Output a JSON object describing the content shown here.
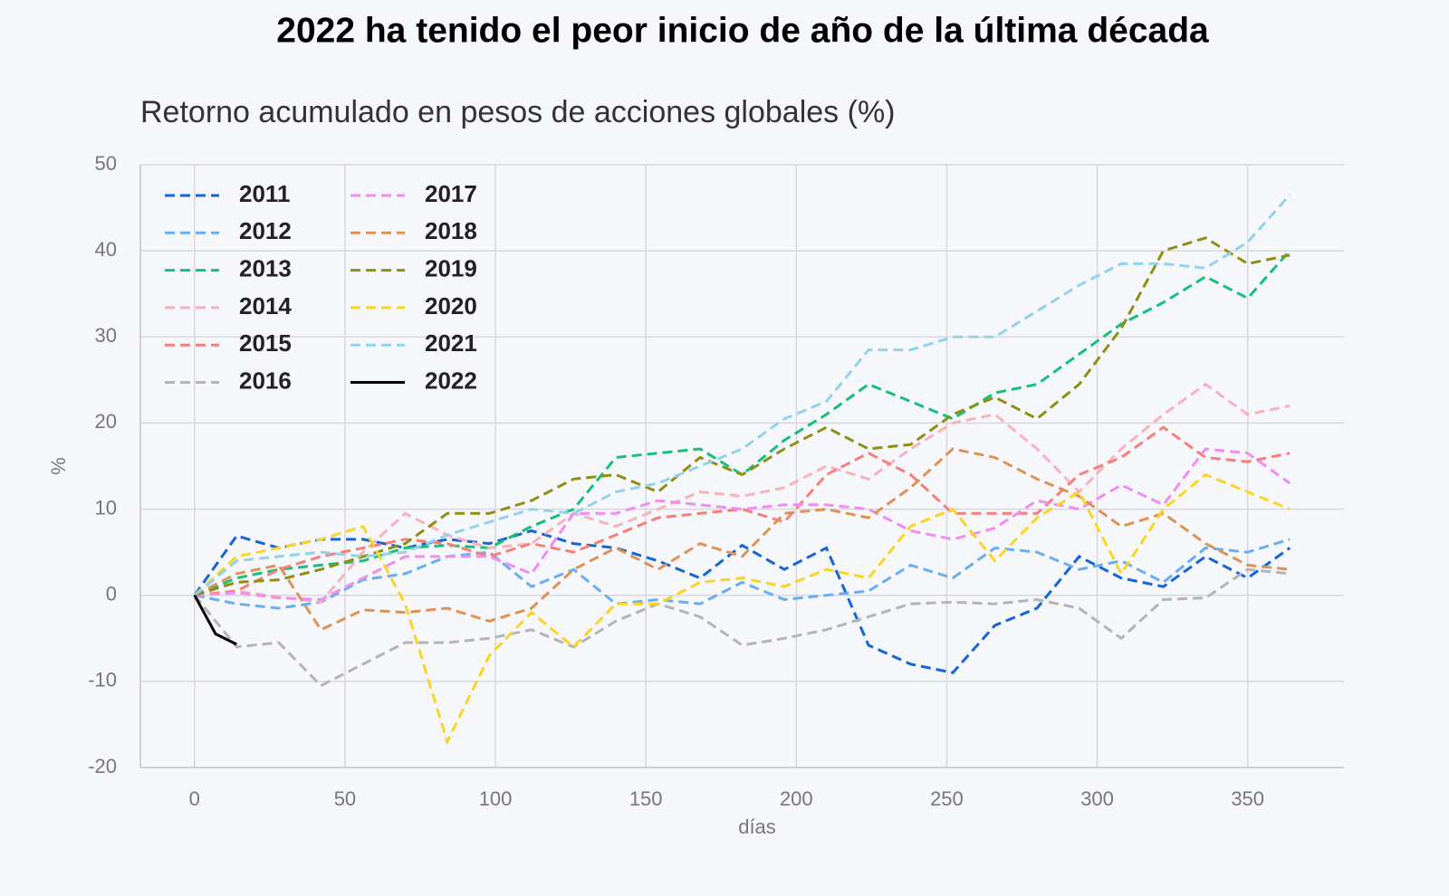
{
  "chart_data": {
    "type": "line",
    "title": "2022 ha tenido el peor inicio de año de la última década",
    "subtitle": "Retorno acumulado en pesos de acciones globales (%)",
    "x_label": "días",
    "y_label": "%",
    "xlim": [
      -18,
      382
    ],
    "ylim": [
      -20,
      50
    ],
    "xticks": [
      0,
      50,
      100,
      150,
      200,
      250,
      300,
      350
    ],
    "yticks": [
      -20,
      -10,
      0,
      10,
      20,
      30,
      40,
      50
    ],
    "grid": true,
    "legend": "upper left",
    "x": [
      0,
      14,
      28,
      42,
      56,
      70,
      84,
      98,
      112,
      126,
      140,
      154,
      168,
      182,
      196,
      210,
      224,
      238,
      252,
      266,
      280,
      294,
      308,
      322,
      336,
      350,
      364
    ],
    "series": [
      {
        "name": "2011",
        "color": "#1565d8",
        "linestyle": "dashed",
        "values": [
          0,
          6.9,
          5.5,
          6.5,
          6.5,
          5.5,
          6.5,
          6,
          7.5,
          6,
          5.5,
          4,
          2,
          5.8,
          3,
          5.5,
          -5.8,
          -8,
          -9,
          -3.5,
          -1.5,
          4.5,
          2,
          1,
          4.5,
          2,
          5.5
        ]
      },
      {
        "name": "2012",
        "color": "#6aaef0",
        "linestyle": "dashed",
        "values": [
          0,
          -1,
          -1.5,
          -0.8,
          1.8,
          2.5,
          4.5,
          5,
          1,
          3,
          -1,
          -0.5,
          -1,
          1.5,
          -0.5,
          0,
          0.5,
          3.5,
          2,
          5.5,
          5,
          3,
          4,
          1.5,
          5.5,
          5,
          6.5
        ]
      },
      {
        "name": "2013",
        "color": "#17c07a",
        "linestyle": "dashed",
        "values": [
          0,
          2,
          3,
          3.5,
          4,
          5.5,
          5.8,
          5.5,
          8,
          10,
          16,
          16.5,
          17,
          14,
          18,
          21,
          24.5,
          22.5,
          20.5,
          23.5,
          24.5,
          28,
          31.5,
          34,
          37,
          34.5,
          40
        ]
      },
      {
        "name": "2014",
        "color": "#f7b3bd",
        "linestyle": "dashed",
        "values": [
          0,
          0.5,
          -0.2,
          -0.8,
          5,
          9.5,
          7,
          5.5,
          6,
          9.5,
          8,
          10,
          12,
          11.5,
          12.5,
          15,
          13.5,
          17,
          20,
          21,
          17,
          12,
          17,
          21,
          24.5,
          21,
          22
        ]
      },
      {
        "name": "2015",
        "color": "#f57f7a",
        "linestyle": "dashed",
        "values": [
          0,
          0.5,
          3,
          4.5,
          5.5,
          6.5,
          6,
          4.5,
          6,
          5,
          7,
          9,
          9.5,
          10,
          8.5,
          14,
          16.5,
          14,
          9.5,
          9.5,
          9.5,
          14,
          16,
          19.5,
          16,
          15.5,
          16.5
        ]
      },
      {
        "name": "2016",
        "color": "#b4b4b4",
        "linestyle": "dashed",
        "values": [
          0,
          -6,
          -5.5,
          -10.5,
          -8,
          -5.5,
          -5.5,
          -5,
          -4,
          -6,
          -3,
          -1,
          -2.5,
          -5.8,
          -5,
          -4,
          -2.5,
          -1,
          -0.8,
          -1,
          -0.5,
          -1.5,
          -5,
          -0.5,
          -0.3,
          3,
          2.5
        ]
      },
      {
        "name": "2017",
        "color": "#ef8ef0",
        "linestyle": "dashed",
        "values": [
          0,
          0.3,
          -0.3,
          -0.5,
          2,
          4.5,
          4.5,
          4.5,
          2.5,
          9.5,
          9.5,
          11,
          10.5,
          10,
          10.5,
          10.5,
          10,
          7.5,
          6.5,
          7.8,
          11,
          10,
          12.8,
          10.5,
          17,
          16.5,
          13
        ]
      },
      {
        "name": "2018",
        "color": "#dd9356",
        "linestyle": "dashed",
        "values": [
          0,
          2.5,
          3.5,
          -4,
          -1.7,
          -2,
          -1.5,
          -3,
          -1.5,
          3,
          5.5,
          3,
          6,
          4.5,
          9.5,
          10,
          9,
          12.5,
          17,
          16,
          13.5,
          11.5,
          8,
          9.5,
          6,
          3.5,
          3
        ]
      },
      {
        "name": "2019",
        "color": "#8f8f16",
        "linestyle": "dashed",
        "values": [
          0,
          1.5,
          1.8,
          3,
          4.5,
          6,
          9.5,
          9.5,
          11,
          13.5,
          14,
          12,
          16,
          14,
          17,
          19.5,
          17,
          17.5,
          21,
          23,
          20.5,
          24.5,
          31,
          40,
          41.5,
          38.5,
          39.5
        ]
      },
      {
        "name": "2020",
        "color": "#f8d526",
        "linestyle": "dashed",
        "values": [
          0,
          4.5,
          5.5,
          6.5,
          8,
          -1,
          -17,
          -7,
          -2,
          -6,
          -1,
          -1,
          1.5,
          2,
          1,
          3,
          2,
          8,
          10,
          4,
          9,
          12,
          2.5,
          10,
          14,
          12,
          10
        ]
      },
      {
        "name": "2021",
        "color": "#93d3ea",
        "linestyle": "dashed",
        "values": [
          0,
          4,
          4.5,
          5,
          4.5,
          5,
          7,
          8.5,
          10,
          9.5,
          12,
          13,
          15,
          17,
          20.5,
          22.5,
          28.5,
          28.5,
          30,
          30,
          33,
          36,
          38.5,
          38.5,
          38,
          41,
          46.5
        ]
      },
      {
        "name": "2022",
        "color": "#000000",
        "linestyle": "solid",
        "x": [
          0,
          7,
          14
        ],
        "values": [
          0,
          -4.5,
          -5.7
        ]
      }
    ]
  }
}
